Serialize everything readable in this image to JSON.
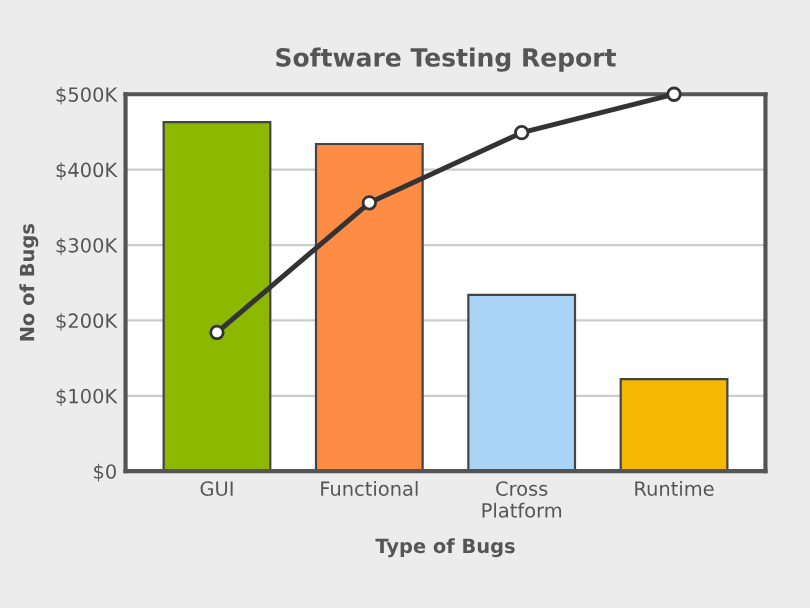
{
  "chart_data": {
    "type": "bar",
    "title": "Software Testing Report",
    "xlabel": "Type of Bugs",
    "ylabel": "No of Bugs",
    "categories": [
      "GUI",
      "Functional",
      "Cross Platform",
      "Runtime"
    ],
    "series": [
      {
        "colors": [
          "#8cb800",
          "#ff8c45",
          "#aad4f5",
          "#f5b800"
        ],
        "values": [
          463,
          434,
          234,
          122
        ]
      },
      {
        "type": "line",
        "color": "#333333",
        "values": [
          184,
          356,
          449,
          500
        ]
      }
    ],
    "ylim": [
      0,
      500
    ],
    "yticks": [
      {
        "value": 0,
        "label": "$0"
      },
      {
        "value": 100,
        "label": "$100K"
      },
      {
        "value": 200,
        "label": "$200K"
      },
      {
        "value": 300,
        "label": "$300K"
      },
      {
        "value": 400,
        "label": "$400K"
      },
      {
        "value": 500,
        "label": "$500K"
      }
    ],
    "grid": "y",
    "marker": "circle",
    "line_style": "solid"
  }
}
